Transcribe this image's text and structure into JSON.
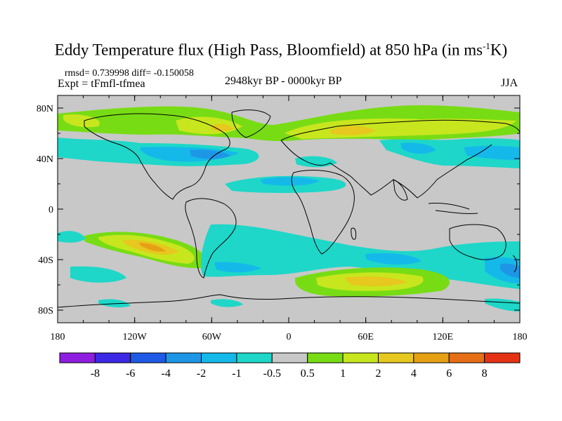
{
  "title": {
    "text": "Eddy Temperature flux (High Pass, Bloomfield) at 850 hPa (in ms",
    "sup": "-1",
    "tail": "K)"
  },
  "stats": "rmsd= 0.739998 diff= -0.150058",
  "experiment": "Expt = tFmfl-tfmea",
  "period": "2948kyr BP - 0000kyr BP",
  "season": "JJA",
  "map": {
    "projection": "cylindrical equidistant",
    "background_value_color": "#c8c8c8",
    "x_ticks": [
      {
        "label": "180",
        "lon": -180
      },
      {
        "label": "120W",
        "lon": -120
      },
      {
        "label": "60W",
        "lon": -60
      },
      {
        "label": "0",
        "lon": 0
      },
      {
        "label": "60E",
        "lon": 60
      },
      {
        "label": "120E",
        "lon": 120
      },
      {
        "label": "180",
        "lon": 180
      }
    ],
    "y_ticks": [
      {
        "label": "80N",
        "lat": 80
      },
      {
        "label": "40N",
        "lat": 40
      },
      {
        "label": "0",
        "lat": 0
      },
      {
        "label": "40S",
        "lat": -40
      },
      {
        "label": "80S",
        "lat": -80
      }
    ],
    "lat_range": [
      -90,
      90
    ],
    "lon_range": [
      -180,
      180
    ]
  },
  "colorbar": {
    "colors": [
      "#8f1fe0",
      "#3c28e6",
      "#1e5ae6",
      "#1e96e6",
      "#14b9ea",
      "#1ed7c8",
      "#c8c8c8",
      "#78dc14",
      "#c8e61e",
      "#e6c81e",
      "#e6a014",
      "#e66e14",
      "#e63214"
    ],
    "labels": [
      "-8",
      "-6",
      "-4",
      "-2",
      "-1",
      "-0.5",
      "0.5",
      "1",
      "2",
      "4",
      "6",
      "8"
    ]
  }
}
